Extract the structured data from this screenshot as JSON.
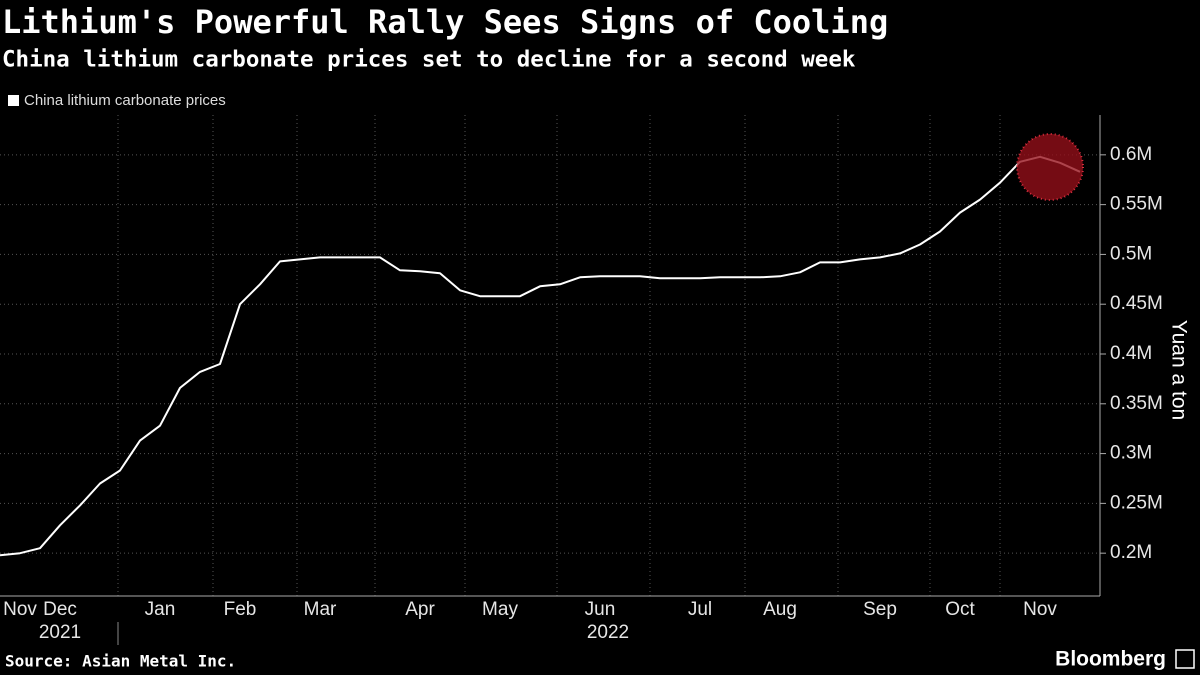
{
  "chart_data": {
    "type": "line",
    "title": "Lithium's Powerful Rally Sees Signs of Cooling",
    "subtitle": "China lithium carbonate prices set to decline for a second week",
    "categories": [
      null,
      "Nov",
      null,
      "Dec",
      null,
      null,
      null,
      null,
      "Jan",
      null,
      null,
      null,
      "Feb",
      null,
      null,
      null,
      "Mar",
      null,
      null,
      null,
      null,
      "Apr",
      null,
      null,
      null,
      "May",
      null,
      null,
      null,
      null,
      "Jun",
      null,
      null,
      null,
      null,
      "Jul",
      null,
      null,
      null,
      "Aug",
      null,
      null,
      null,
      null,
      "Sep",
      null,
      null,
      null,
      "Oct",
      null,
      null,
      null,
      "Nov",
      null,
      null
    ],
    "x_group_labels": [
      "2021",
      "2022"
    ],
    "series": [
      {
        "name": "China lithium carbonate prices",
        "color": "#ffffff",
        "values": [
          198000,
          200000,
          205000,
          228000,
          248000,
          270000,
          283000,
          313000,
          328000,
          366000,
          382000,
          390000,
          450000,
          470000,
          493000,
          495000,
          497000,
          497000,
          497000,
          497000,
          484000,
          483000,
          481000,
          464000,
          458000,
          458000,
          458000,
          468000,
          470000,
          477000,
          478000,
          478000,
          478000,
          476000,
          476000,
          476000,
          477000,
          477000,
          477000,
          478000,
          482000,
          492000,
          492000,
          495000,
          497000,
          501000,
          510000,
          523000,
          542000,
          555000,
          572000,
          593000,
          598000,
          592000,
          583000
        ]
      }
    ],
    "ylim": [
      160000,
      640000
    ],
    "yticks": [
      {
        "value": 200000,
        "label": "0.2M"
      },
      {
        "value": 250000,
        "label": "0.25M"
      },
      {
        "value": 300000,
        "label": "0.3M"
      },
      {
        "value": 350000,
        "label": "0.35M"
      },
      {
        "value": 400000,
        "label": "0.4M"
      },
      {
        "value": 450000,
        "label": "0.45M"
      },
      {
        "value": 500000,
        "label": "0.5M"
      },
      {
        "value": 550000,
        "label": "0.55M"
      },
      {
        "value": 600000,
        "label": "0.6M"
      }
    ],
    "y_label": "Yuan a ton",
    "grid": true,
    "source": "Source: Asian Metal Inc.",
    "brand": "Bloomberg"
  }
}
